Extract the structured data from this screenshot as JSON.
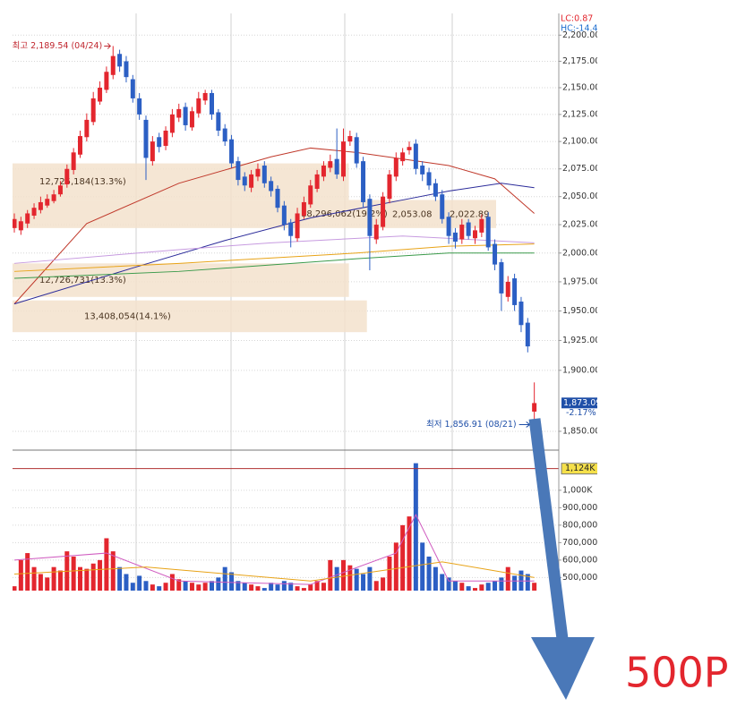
{
  "chart_data": [
    {
      "type": "candlestick",
      "categories": [
        null,
        null,
        null,
        null,
        null,
        null,
        null,
        null,
        null,
        null,
        null,
        null,
        null,
        null,
        null,
        null,
        null,
        null,
        null,
        null,
        null,
        null,
        null,
        null,
        null,
        null,
        null,
        null,
        null,
        null,
        null,
        null,
        null,
        null,
        null,
        null,
        null,
        null,
        null,
        null,
        null,
        null,
        null,
        null,
        null,
        null,
        null,
        null,
        null,
        null,
        null,
        null,
        null,
        null,
        null,
        null,
        null,
        null,
        null,
        null,
        null,
        null,
        null,
        null,
        null,
        null,
        null,
        null,
        null,
        null,
        null,
        null,
        null,
        null,
        null,
        null,
        null,
        null,
        null,
        null
      ],
      "open": [
        2022,
        2020,
        2026,
        2033,
        2038,
        2042,
        2046,
        2052,
        2061,
        2074,
        2088,
        2104,
        2118,
        2137,
        2148,
        2162,
        2182,
        2175,
        2158,
        2140,
        2120,
        2082,
        2104,
        2096,
        2108,
        2122,
        2132,
        2113,
        2126,
        2138,
        2145,
        2127,
        2112,
        2102,
        2082,
        2068,
        2058,
        2068,
        2078,
        2064,
        2057,
        2042,
        2027,
        2013,
        2033,
        2043,
        2057,
        2068,
        2076,
        2084,
        2068,
        2100,
        2104,
        2082,
        2048,
        2012,
        2023,
        2048,
        2068,
        2082,
        2092,
        2098,
        2078,
        2072,
        2062,
        2052,
        2032,
        2018,
        2012,
        2027,
        2013,
        2018,
        2032,
        2008,
        1992,
        1962,
        1978,
        1958,
        1940,
        1866
      ],
      "high": [
        2035,
        2032,
        2038,
        2044,
        2050,
        2052,
        2056,
        2064,
        2079,
        2094,
        2110,
        2126,
        2146,
        2156,
        2170,
        2189.54,
        2186,
        2180,
        2162,
        2145,
        2124,
        2105,
        2108,
        2114,
        2130,
        2135,
        2136,
        2132,
        2146,
        2148,
        2148,
        2130,
        2116,
        2106,
        2086,
        2072,
        2074,
        2080,
        2082,
        2068,
        2060,
        2046,
        2030,
        2040,
        2050,
        2065,
        2074,
        2082,
        2088,
        2112,
        2112,
        2110,
        2108,
        2086,
        2052,
        2030,
        2054,
        2074,
        2090,
        2094,
        2100,
        2102,
        2082,
        2076,
        2066,
        2056,
        2036,
        2022,
        2030,
        2030,
        2024,
        2034,
        2036,
        2012,
        1995,
        1980,
        1982,
        1962,
        1944,
        1890
      ],
      "low": [
        2018,
        2016,
        2022,
        2030,
        2035,
        2040,
        2044,
        2050,
        2058,
        2070,
        2085,
        2100,
        2115,
        2134,
        2145,
        2158,
        2165,
        2155,
        2136,
        2120,
        2065,
        2078,
        2090,
        2092,
        2104,
        2118,
        2110,
        2110,
        2122,
        2134,
        2120,
        2105,
        2096,
        2076,
        2060,
        2055,
        2054,
        2064,
        2058,
        2050,
        2036,
        2020,
        2005,
        2010,
        2030,
        2040,
        2054,
        2064,
        2072,
        2066,
        2064,
        2096,
        2076,
        2040,
        1985,
        2008,
        2020,
        2044,
        2064,
        2078,
        2088,
        2070,
        2064,
        2056,
        2046,
        2026,
        2008,
        2004,
        2008,
        2012,
        2008,
        2014,
        2002,
        1985,
        1950,
        1958,
        1950,
        1932,
        1915,
        1856.91
      ],
      "close": [
        2030,
        2028,
        2035,
        2040,
        2045,
        2048,
        2052,
        2060,
        2075,
        2090,
        2105,
        2120,
        2140,
        2150,
        2165,
        2180,
        2170,
        2160,
        2140,
        2125,
        2085,
        2100,
        2095,
        2110,
        2125,
        2130,
        2115,
        2128,
        2140,
        2145,
        2125,
        2110,
        2100,
        2080,
        2065,
        2060,
        2070,
        2075,
        2062,
        2055,
        2040,
        2025,
        2015,
        2035,
        2045,
        2060,
        2070,
        2078,
        2082,
        2070,
        2100,
        2105,
        2080,
        2045,
        2015,
        2025,
        2050,
        2070,
        2085,
        2090,
        2095,
        2075,
        2070,
        2060,
        2050,
        2030,
        2015,
        2010,
        2025,
        2015,
        2020,
        2030,
        2005,
        1990,
        1965,
        1975,
        1955,
        1938,
        1920,
        1873
      ],
      "up_color": "#e3262e",
      "down_color": "#2c5fc4",
      "log": true,
      "grid": true,
      "ylim": [
        1837,
        2221
      ],
      "yticks": [
        {
          "value": 1850,
          "label": "1,850.00"
        },
        {
          "value": 1900,
          "label": "1,900.00"
        },
        {
          "value": 1925,
          "label": "1,925.00"
        },
        {
          "value": 1950,
          "label": "1,950.00"
        },
        {
          "value": 1975,
          "label": "1,975.00"
        },
        {
          "value": 2000,
          "label": "2,000.00"
        },
        {
          "value": 2025,
          "label": "2,025.00"
        },
        {
          "value": 2050,
          "label": "2,050.00"
        },
        {
          "value": 2075,
          "label": "2,075.00"
        },
        {
          "value": 2100,
          "label": "2,100.00"
        },
        {
          "value": 2125,
          "label": "2,125.00"
        },
        {
          "value": 2150,
          "label": "2,150.00"
        },
        {
          "value": 2175,
          "label": "2,175.00"
        },
        {
          "value": 2200,
          "label": "2,200.00"
        }
      ],
      "moving_averages": [
        {
          "color": "#c0392b",
          "x": [
            0,
            11,
            25,
            39,
            45,
            52,
            66,
            73,
            79
          ],
          "values": [
            1956,
            2026,
            2062,
            2086,
            2094,
            2090,
            2078,
            2066,
            2035
          ]
        },
        {
          "color": "#2b2b9a",
          "x": [
            0,
            18,
            32,
            45,
            59,
            66,
            74,
            79
          ],
          "values": [
            1956,
            1987,
            2011,
            2031,
            2047,
            2055,
            2062,
            2058
          ]
        },
        {
          "color": "#c79be0",
          "x": [
            0,
            25,
            39,
            59,
            79
          ],
          "values": [
            1991,
            2003,
            2009,
            2015,
            2009
          ]
        },
        {
          "color": "#e8a317",
          "x": [
            0,
            25,
            52,
            66,
            79
          ],
          "values": [
            1984,
            1991,
            2000,
            2006,
            2008
          ]
        },
        {
          "color": "#3a9a4a",
          "x": [
            0,
            25,
            52,
            66,
            79
          ],
          "values": [
            1978,
            1984,
            1995,
            2000,
            2000
          ]
        }
      ],
      "volume_profile": [
        {
          "label": "12,725,184(13.3%)",
          "volume": 12725184,
          "prices": [
            2047,
            2080
          ]
        },
        {
          "label": "18,296,062(19.2%)",
          "volume": 18296062,
          "prices": [
            2022,
            2047
          ]
        },
        {
          "label": "12,726,731(13.3%)",
          "volume": 12726731,
          "prices": [
            1962,
            1991
          ]
        },
        {
          "label": "13,408,054(14.1%)",
          "volume": 13408054,
          "prices": [
            1932,
            1959
          ]
        }
      ],
      "profile_notes": [
        "2,053.08",
        "2,022.89"
      ],
      "last_price": {
        "value": 1873.09,
        "label": "1,873.09"
      },
      "annotations": {
        "high": "최고 2,189.54 (04/24)",
        "low": "최저 1,856.91 (08/21)",
        "change": "-2.17%",
        "lc": "LC:0.87",
        "hc": "HC:-14.4"
      }
    },
    {
      "type": "bar",
      "categories": [
        null,
        null,
        null,
        null,
        null,
        null,
        null,
        null,
        null,
        null,
        null,
        null,
        null,
        null,
        null,
        null,
        null,
        null,
        null,
        null,
        null,
        null,
        null,
        null,
        null,
        null,
        null,
        null,
        null,
        null,
        null,
        null,
        null,
        null,
        null,
        null,
        null,
        null,
        null,
        null,
        null,
        null,
        null,
        null,
        null,
        null,
        null,
        null,
        null,
        null,
        null,
        null,
        null,
        null,
        null,
        null,
        null,
        null,
        null,
        null,
        null,
        null,
        null,
        null,
        null,
        null,
        null,
        null,
        null,
        null,
        null,
        null,
        null,
        null,
        null,
        null,
        null,
        null,
        null,
        null
      ],
      "values": [
        450000,
        600000,
        640000,
        560000,
        520000,
        500000,
        560000,
        540000,
        650000,
        620000,
        560000,
        550000,
        580000,
        600000,
        725000,
        650000,
        560000,
        520000,
        470000,
        510000,
        480000,
        460000,
        450000,
        470000,
        520000,
        490000,
        480000,
        470000,
        460000,
        470000,
        480000,
        500000,
        560000,
        530000,
        480000,
        470000,
        460000,
        450000,
        440000,
        470000,
        460000,
        480000,
        470000,
        450000,
        440000,
        460000,
        480000,
        470000,
        600000,
        560000,
        600000,
        570000,
        550000,
        520000,
        560000,
        480000,
        500000,
        620000,
        700000,
        800000,
        850000,
        1155000,
        700000,
        620000,
        560000,
        520000,
        500000,
        480000,
        470000,
        450000,
        440000,
        460000,
        470000,
        480000,
        500000,
        560000,
        510000,
        540000,
        520000,
        470000
      ],
      "ylim": [
        425000,
        1230000
      ],
      "yticks": [
        {
          "value": 500000,
          "label": "500,000"
        },
        {
          "value": 600000,
          "label": "600,000"
        },
        {
          "value": 700000,
          "label": "700,000"
        },
        {
          "value": 800000,
          "label": "800,000"
        },
        {
          "value": 900000,
          "label": "900,000"
        },
        {
          "value": 1000000,
          "label": "1,000K"
        }
      ],
      "grid": true,
      "reference": {
        "value": 1124000,
        "label": "1,124K"
      },
      "moving_averages": [
        {
          "color": "#d05cc0",
          "x": [
            0,
            14,
            25,
            45,
            58,
            61,
            66,
            79
          ],
          "values": [
            600000,
            640000,
            480000,
            460000,
            640000,
            860000,
            480000,
            480000
          ]
        },
        {
          "color": "#e8a317",
          "x": [
            0,
            20,
            45,
            65,
            79
          ],
          "values": [
            520000,
            560000,
            480000,
            590000,
            500000
          ]
        }
      ]
    }
  ],
  "callout": "500P"
}
